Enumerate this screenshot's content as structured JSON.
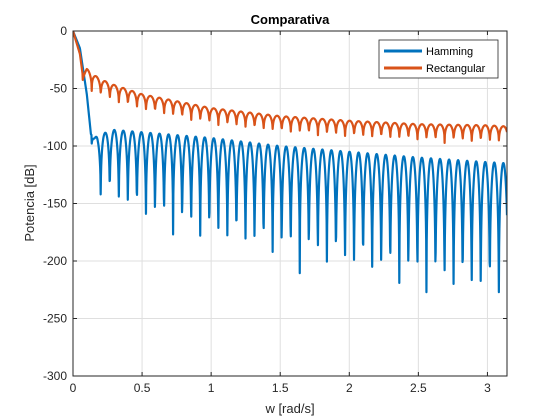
{
  "chart_data": {
    "type": "line",
    "title": "Comparativa",
    "xlabel": "w [rad/s]",
    "ylabel": "Potencia [dB]",
    "xlim": [
      0,
      3.1416
    ],
    "ylim": [
      -300,
      0
    ],
    "xticks": [
      0,
      0.5,
      1,
      1.5,
      2,
      2.5,
      3
    ],
    "xtick_labels": [
      "0",
      "0.5",
      "1",
      "1.5",
      "2",
      "2.5",
      "3"
    ],
    "yticks": [
      0,
      -50,
      -100,
      -150,
      -200,
      -250,
      -300
    ],
    "ytick_labels": [
      "0",
      "-50",
      "-100",
      "-150",
      "-200",
      "-250",
      "-300"
    ],
    "grid": true,
    "legend_position": "top-right",
    "series": [
      {
        "name": "Hamming",
        "color": "#0072bd",
        "description_points": {
          "x": [
            0,
            0.05,
            0.1,
            0.13,
            0.15,
            0.18,
            0.22,
            0.3,
            0.5,
            1,
            1.5,
            2,
            2.5,
            3,
            3.14
          ],
          "upper_envelope": [
            0,
            -15,
            -55,
            -90,
            -92,
            -92,
            -89,
            -86,
            -88,
            -93,
            -100,
            -105,
            -110,
            -114,
            -115
          ],
          "lower_envelope": [
            0,
            -15,
            -55,
            -100,
            -105,
            -170,
            -150,
            -165,
            -180,
            -205,
            -220,
            -235,
            -250,
            -262,
            -265
          ]
        }
      },
      {
        "name": "Rectangular",
        "color": "#d95319",
        "description_points": {
          "x": [
            0,
            0.05,
            0.07,
            0.1,
            0.15,
            0.2,
            0.3,
            0.5,
            1,
            1.5,
            2,
            2.5,
            3,
            3.14
          ],
          "upper_envelope": [
            0,
            -20,
            -38,
            -33,
            -38,
            -42,
            -47,
            -55,
            -67,
            -74,
            -78,
            -81,
            -82,
            -83
          ],
          "lower_envelope": [
            0,
            -25,
            -45,
            -50,
            -56,
            -60,
            -65,
            -72,
            -84,
            -91,
            -95,
            -98,
            -100,
            -100
          ]
        }
      }
    ]
  }
}
